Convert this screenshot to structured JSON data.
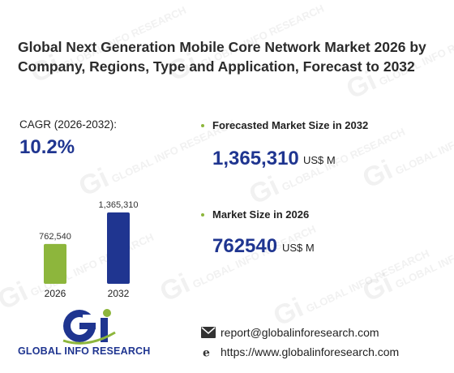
{
  "title": "Global Next Generation Mobile Core Network Market 2026 by Company, Regions, Type and Application, Forecast to 2032",
  "cagr": {
    "label": "CAGR (2026-2032):",
    "value": "10.2%"
  },
  "forecast": {
    "label": "Forecasted Market Size in 2032",
    "value": "1,365,310",
    "unit": "US$ M"
  },
  "market": {
    "label": "Market Size in 2026",
    "value": "762540",
    "unit": "US$ M"
  },
  "chart_data": {
    "type": "bar",
    "categories": [
      "2026",
      "2032"
    ],
    "values": [
      762540,
      1365310
    ],
    "data_labels": [
      "762,540",
      "1,365,310"
    ],
    "colors": [
      "#8db63c",
      "#1f3590"
    ]
  },
  "logo": {
    "text": "GLOBAL INFO RESEARCH",
    "icon": "gi-logo-icon"
  },
  "contact": {
    "email": "report@globalinforesearch.com",
    "website": "https://www.globalinforesearch.com",
    "email_icon": "envelope-icon",
    "web_icon": "browser-icon"
  },
  "watermark": "GLOBAL INFO RESEARCH"
}
